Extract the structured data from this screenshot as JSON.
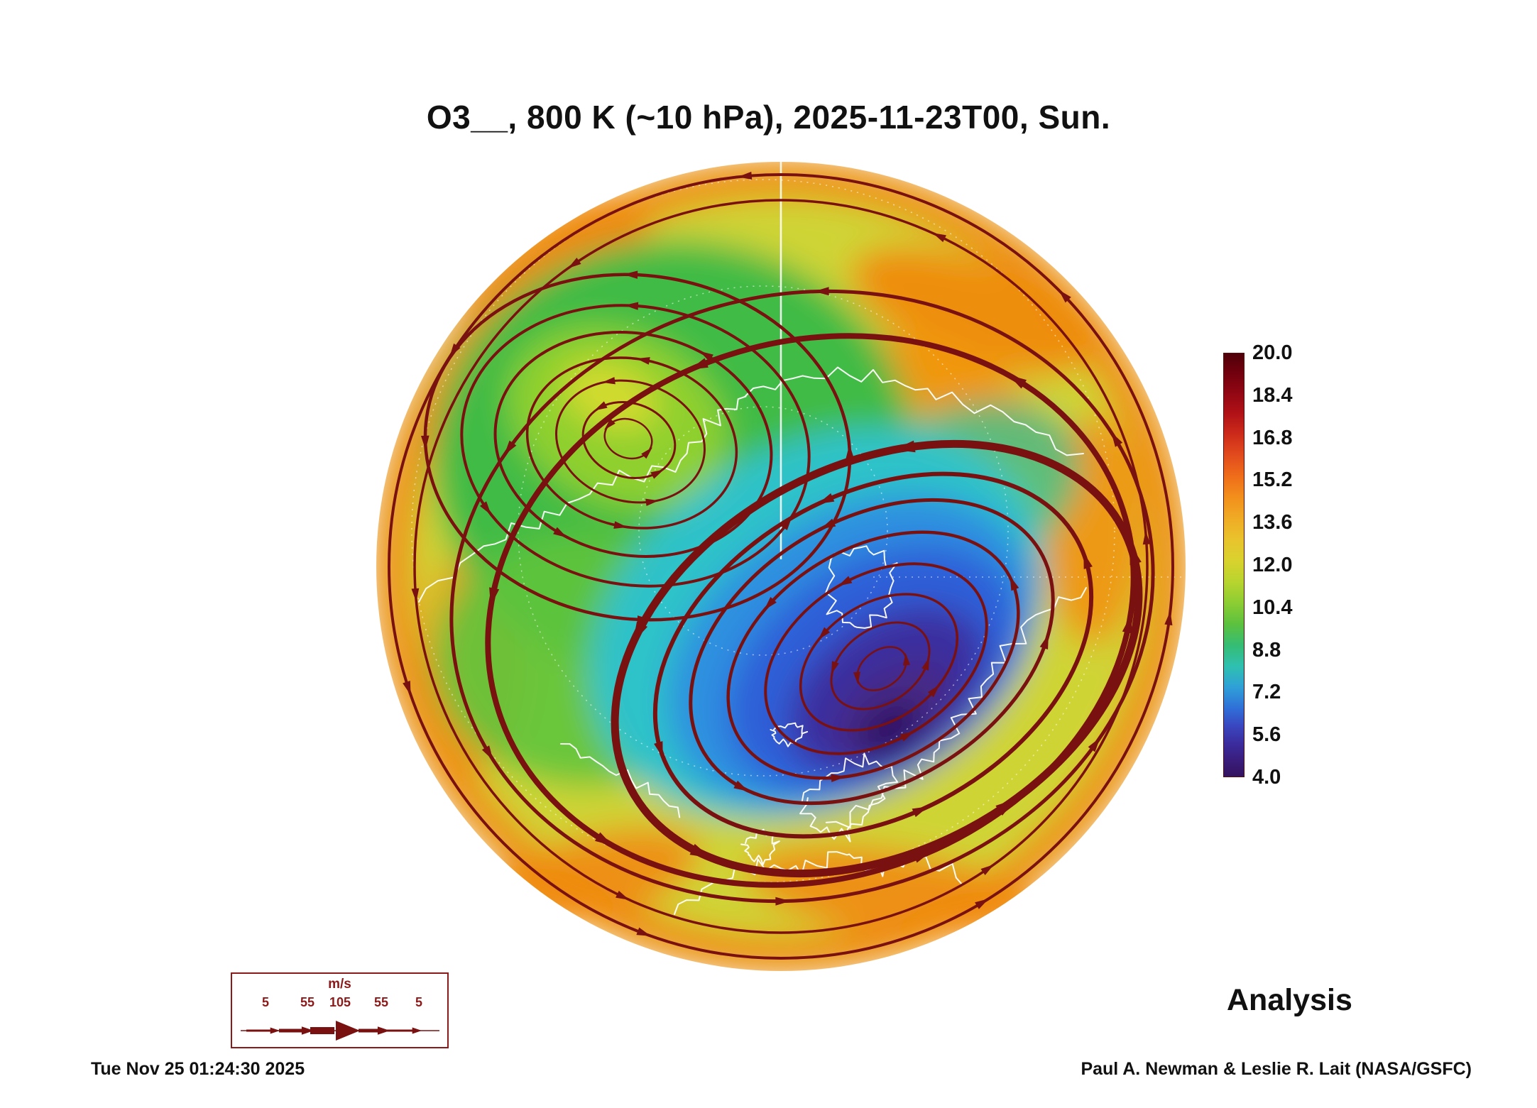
{
  "title": "O3__, 800 K (~10 hPa), 2025-11-23T00, Sun.",
  "chart_data": {
    "type": "heatmap",
    "title": "O3__, 800 K (~10 hPa), 2025-11-23T00, Sun.",
    "quantity": "O3",
    "level": "800 K (~10 hPa)",
    "valid_time": "2025-11-23T00",
    "weekday": "Sun.",
    "projection": "north polar stereographic",
    "region": "Northern Hemisphere",
    "annotation": "Analysis",
    "colorbar": {
      "min": 4.0,
      "max": 20.0,
      "ticks": [
        "20.0",
        "18.4",
        "16.8",
        "15.2",
        "13.6",
        "12.0",
        "10.4",
        "8.8",
        "7.2",
        "5.6",
        "4.0"
      ],
      "colors_top_to_bottom": [
        "#4f0009",
        "#8f0613",
        "#cc2a1a",
        "#ef6d1a",
        "#f0ab25",
        "#d9d22e",
        "#8ccd33",
        "#35bd74",
        "#2fc0b0",
        "#2f9fd8",
        "#2f6ed8",
        "#3b2da0",
        "#33135f"
      ]
    },
    "wind_legend": {
      "units": "m/s",
      "ticks": [
        "5",
        "55",
        "105",
        "55",
        "5"
      ]
    },
    "streamline_color": "#7a1111",
    "coastline_color": "#ffffff"
  },
  "footer": {
    "timestamp": "Tue Nov 25 01:24:30 2025",
    "credit": "Paul A. Newman & Leslie R. Lait (NASA/GSFC)"
  }
}
